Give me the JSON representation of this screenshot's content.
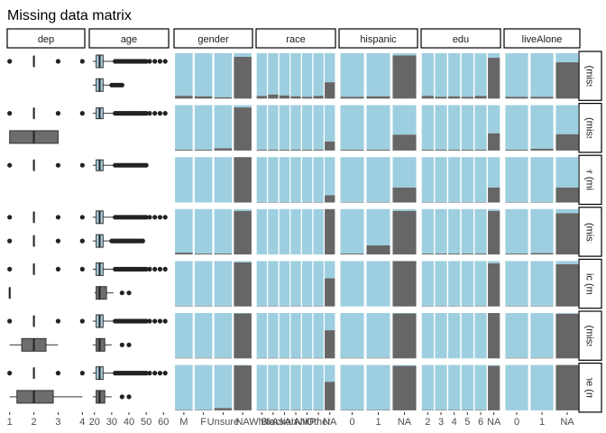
{
  "chart_data": {
    "type": "facet-matrix",
    "title": "Missing data matrix",
    "colors": {
      "observed": "#9ecfe0",
      "missing": "#666666",
      "box_fill": "#6d6d6d",
      "box_fill_light": "#a9cfe0"
    },
    "columns": [
      {
        "name": "dep",
        "kind": "box",
        "ticks": [
          "1",
          "2",
          "3",
          "4"
        ],
        "xlim": [
          0.9,
          4.1
        ]
      },
      {
        "name": "age",
        "kind": "box",
        "ticks": [
          "20",
          "30",
          "40",
          "50",
          "60"
        ],
        "xlim": [
          17,
          63
        ]
      },
      {
        "name": "gender",
        "kind": "bar",
        "categories": [
          "M",
          "F",
          "Unsure",
          "NA"
        ]
      },
      {
        "name": "race",
        "kind": "bar",
        "categories": [
          "White",
          "Black",
          "Asian",
          "AIAN",
          "NHPI",
          "Other",
          "NA"
        ],
        "tick_labels": [
          "White",
          "Black",
          "Asian",
          "AIAN",
          "NHPI",
          "Other",
          "NA"
        ]
      },
      {
        "name": "hispanic",
        "kind": "bar",
        "categories": [
          "0",
          "1",
          "NA"
        ]
      },
      {
        "name": "edu",
        "kind": "bar",
        "categories": [
          "2",
          "3",
          "4",
          "5",
          "6",
          "NA"
        ]
      },
      {
        "name": "liveAlone",
        "kind": "bar",
        "categories": [
          "0",
          "1",
          "NA"
        ]
      }
    ],
    "rows": [
      {
        "label": "dep (missing)",
        "dep": {
          "groups": [
            {
              "q1": 2,
              "med": 2,
              "q3": 2,
              "lo": 2,
              "hi": 2,
              "out": [
                1,
                3,
                4
              ]
            }
          ]
        },
        "age": {
          "groups": [
            {
              "q1": 21,
              "med": 23,
              "q3": 25,
              "lo": 19,
              "hi": 31,
              "out": [
                32,
                33,
                34,
                35,
                36,
                37,
                38,
                39,
                40,
                41,
                42,
                43,
                44,
                45,
                46,
                47,
                48,
                49,
                50,
                52,
                55,
                58,
                61
              ],
              "light": true
            },
            {
              "q1": 21,
              "med": 23,
              "q3": 25,
              "lo": 19,
              "hi": 29,
              "out": [
                30,
                31,
                32,
                33,
                34,
                35,
                36
              ],
              "light": true
            }
          ]
        },
        "gender": [
          0.06,
          0.05,
          0.03,
          0.92
        ],
        "race": [
          0.06,
          0.09,
          0.07,
          0.05,
          0.04,
          0.06,
          0.36
        ],
        "hispanic": [
          0.04,
          0.05,
          0.95
        ],
        "edu": [
          0.06,
          0.04,
          0.05,
          0.04,
          0.06,
          0.9
        ],
        "liveAlone": [
          0.04,
          0.04,
          0.8
        ]
      },
      {
        "label": "age (missing)",
        "dep": {
          "groups": [
            {
              "q1": 2,
              "med": 2,
              "q3": 2,
              "lo": 2,
              "hi": 2,
              "out": [
                1,
                3,
                4
              ]
            },
            {
              "q1": 1,
              "med": 2,
              "q3": 3,
              "lo": 1,
              "hi": 3,
              "out": []
            }
          ]
        },
        "age": {
          "groups": [
            {
              "q1": 21,
              "med": 23,
              "q3": 25,
              "lo": 19,
              "hi": 31,
              "out": [
                32,
                33,
                34,
                35,
                36,
                37,
                38,
                39,
                40,
                41,
                42,
                43,
                44,
                45,
                46,
                47,
                48,
                49,
                50,
                52,
                55,
                58,
                61
              ],
              "light": true
            }
          ]
        },
        "gender": [
          0.02,
          0.02,
          0.05,
          0.95
        ],
        "race": [
          0.02,
          0.02,
          0.02,
          0.02,
          0.02,
          0.02,
          0.2
        ],
        "hispanic": [
          0.02,
          0.02,
          0.35
        ],
        "edu": [
          0.02,
          0.02,
          0.02,
          0.02,
          0.02,
          0.38
        ],
        "liveAlone": [
          0.02,
          0.04,
          0.36
        ]
      },
      {
        "label": "gender (missing)",
        "dep": {
          "groups": [
            {
              "q1": 2,
              "med": 2,
              "q3": 2,
              "lo": 2,
              "hi": 2,
              "out": [
                1,
                3,
                4
              ]
            }
          ]
        },
        "age": {
          "groups": [
            {
              "q1": 21,
              "med": 23,
              "q3": 25,
              "lo": 19,
              "hi": 31,
              "out": [
                32,
                33,
                34,
                35,
                36,
                37,
                38,
                39,
                40,
                41,
                42,
                43,
                44,
                45,
                46,
                47,
                48,
                49,
                50
              ],
              "light": true
            }
          ]
        },
        "gender": [
          0.0,
          0.0,
          0.0,
          1.0
        ],
        "race": [
          0.01,
          0.01,
          0.01,
          0.01,
          0.01,
          0.01,
          0.16
        ],
        "hispanic": [
          0.01,
          0.01,
          0.33
        ],
        "edu": [
          0.01,
          0.01,
          0.01,
          0.01,
          0.01,
          0.33
        ],
        "liveAlone": [
          0.01,
          0.01,
          0.33
        ]
      },
      {
        "label": "race (missing)",
        "dep": {
          "groups": [
            {
              "q1": 2,
              "med": 2,
              "q3": 2,
              "lo": 2,
              "hi": 2,
              "out": [
                1,
                3,
                4
              ]
            },
            {
              "q1": 2,
              "med": 2,
              "q3": 2,
              "lo": 2,
              "hi": 2,
              "out": [
                1,
                3,
                4
              ]
            }
          ]
        },
        "age": {
          "groups": [
            {
              "q1": 21,
              "med": 23,
              "q3": 25,
              "lo": 19,
              "hi": 31,
              "out": [
                32,
                33,
                34,
                35,
                36,
                37,
                38,
                39,
                40,
                41,
                42,
                43,
                44,
                45,
                46,
                47,
                48,
                49,
                50,
                52,
                55,
                58,
                61
              ],
              "light": true
            },
            {
              "q1": 21,
              "med": 23,
              "q3": 25,
              "lo": 19,
              "hi": 29,
              "out": [
                30,
                31,
                32,
                33,
                34,
                35,
                36,
                37,
                38,
                39,
                40,
                41,
                42,
                43,
                44,
                45,
                46,
                47,
                48
              ],
              "light": true
            }
          ]
        },
        "gender": [
          0.04,
          0.02,
          0.02,
          0.96
        ],
        "race": [
          0.0,
          0.0,
          0.0,
          0.0,
          0.0,
          0.0,
          1.0
        ],
        "hispanic": [
          0.02,
          0.2,
          0.96
        ],
        "edu": [
          0.02,
          0.02,
          0.02,
          0.02,
          0.02,
          0.96
        ],
        "liveAlone": [
          0.02,
          0.03,
          0.91
        ]
      },
      {
        "label": "hispanic (missing)",
        "dep": {
          "groups": [
            {
              "q1": 2,
              "med": 2,
              "q3": 2,
              "lo": 2,
              "hi": 2,
              "out": [
                1,
                3,
                4
              ]
            },
            {
              "q1": 1,
              "med": 1,
              "q3": 1,
              "lo": 1,
              "hi": 1,
              "out": []
            }
          ]
        },
        "age": {
          "groups": [
            {
              "q1": 21,
              "med": 23,
              "q3": 25,
              "lo": 19,
              "hi": 31,
              "out": [
                32,
                33,
                34,
                35,
                36,
                37,
                38,
                39,
                40,
                41,
                42,
                43,
                44,
                45,
                46,
                47,
                48,
                49,
                50,
                52,
                55,
                58,
                61
              ],
              "light": true
            },
            {
              "q1": 21,
              "med": 23,
              "q3": 27,
              "lo": 20,
              "hi": 31,
              "out": [
                36,
                40
              ]
            }
          ]
        },
        "gender": [
          0.01,
          0.01,
          0.01,
          0.97
        ],
        "race": [
          0.01,
          0.01,
          0.01,
          0.01,
          0.01,
          0.01,
          0.62
        ],
        "hispanic": [
          0.0,
          0.0,
          1.0
        ],
        "edu": [
          0.01,
          0.01,
          0.01,
          0.01,
          0.01,
          0.95
        ],
        "liveAlone": [
          0.01,
          0.01,
          0.93
        ]
      },
      {
        "label": "edu (missing)",
        "dep": {
          "groups": [
            {
              "q1": 2,
              "med": 2,
              "q3": 2,
              "lo": 2,
              "hi": 2,
              "out": [
                1,
                3,
                4
              ]
            },
            {
              "q1": 1.5,
              "med": 2,
              "q3": 2.5,
              "lo": 1,
              "hi": 3,
              "out": []
            }
          ]
        },
        "age": {
          "groups": [
            {
              "q1": 21,
              "med": 23,
              "q3": 25,
              "lo": 19,
              "hi": 31,
              "out": [
                32,
                33,
                34,
                35,
                36,
                37,
                38,
                39,
                40,
                41,
                42,
                43,
                44,
                45,
                46,
                47,
                48,
                49,
                50,
                52,
                55,
                58,
                61
              ],
              "light": true
            },
            {
              "q1": 21,
              "med": 23,
              "q3": 26,
              "lo": 19,
              "hi": 30,
              "out": [
                36,
                40
              ]
            }
          ]
        },
        "gender": [
          0.01,
          0.01,
          0.01,
          0.99
        ],
        "race": [
          0.01,
          0.01,
          0.01,
          0.01,
          0.01,
          0.01,
          0.62
        ],
        "hispanic": [
          0.01,
          0.01,
          0.99
        ],
        "edu": [
          0.0,
          0.0,
          0.0,
          0.0,
          0.0,
          1.0
        ],
        "liveAlone": [
          0.01,
          0.01,
          0.98
        ]
      },
      {
        "label": "liveAlone (missing)",
        "dep": {
          "groups": [
            {
              "q1": 2,
              "med": 2,
              "q3": 2,
              "lo": 2,
              "hi": 2,
              "out": [
                1,
                3,
                4
              ]
            },
            {
              "q1": 1.3,
              "med": 2,
              "q3": 2.8,
              "lo": 1,
              "hi": 4,
              "out": []
            }
          ]
        },
        "age": {
          "groups": [
            {
              "q1": 21,
              "med": 23,
              "q3": 25,
              "lo": 19,
              "hi": 31,
              "out": [
                32,
                33,
                34,
                35,
                36,
                37,
                38,
                39,
                40,
                41,
                42,
                43,
                44,
                45,
                46,
                47,
                48,
                49,
                50,
                52,
                55,
                58,
                61
              ],
              "light": true
            },
            {
              "q1": 21,
              "med": 23,
              "q3": 26,
              "lo": 19,
              "hi": 30,
              "out": [
                36,
                40
              ]
            }
          ]
        },
        "gender": [
          0.01,
          0.01,
          0.05,
          0.99
        ],
        "race": [
          0.01,
          0.01,
          0.01,
          0.01,
          0.01,
          0.01,
          0.63
        ],
        "hispanic": [
          0.01,
          0.01,
          0.98
        ],
        "edu": [
          0.01,
          0.01,
          0.01,
          0.01,
          0.01,
          0.98
        ],
        "liveAlone": [
          0.0,
          0.0,
          1.0
        ]
      }
    ]
  }
}
